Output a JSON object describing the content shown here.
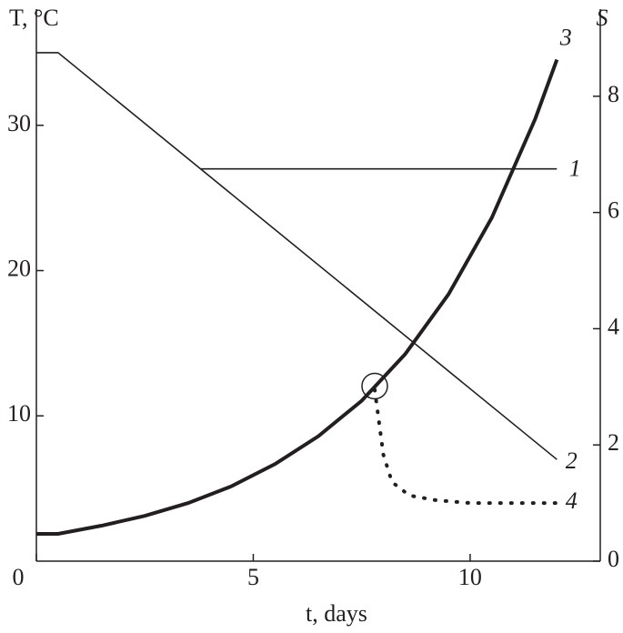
{
  "chart_data": {
    "type": "line",
    "ylabel": "T, °C",
    "y2label": "S",
    "xlabel": "t, days",
    "xlim": [
      0,
      13
    ],
    "xticks": [
      0,
      5,
      10
    ],
    "ylim": [
      0,
      38
    ],
    "yticks": [
      10,
      20,
      30
    ],
    "y2lim": [
      0,
      9.5
    ],
    "y2ticks": [
      0,
      2,
      4,
      6,
      8
    ],
    "series": [
      {
        "name": "1",
        "color": "#231f20",
        "style": "thin",
        "x": [
          3.8,
          12
        ],
        "values": [
          27,
          27
        ]
      },
      {
        "name": "2",
        "color": "#231f20",
        "style": "thin",
        "x": [
          0,
          0.5,
          12
        ],
        "values": [
          35,
          35,
          7
        ]
      },
      {
        "name": "3",
        "color": "#231f20",
        "style": "thick",
        "axis": "y2",
        "x": [
          0,
          0.5,
          1.5,
          2.5,
          3.5,
          4.5,
          5.5,
          6.5,
          7.5,
          8.5,
          9.5,
          10.5,
          11.5,
          12
        ],
        "values": [
          0.47,
          0.47,
          0.61,
          0.78,
          1.0,
          1.29,
          1.67,
          2.15,
          2.76,
          3.56,
          4.59,
          5.91,
          7.61,
          8.63
        ]
      },
      {
        "name": "4",
        "color": "#231f20",
        "style": "dotted",
        "axis": "y2",
        "x": [
          7.8,
          8.0,
          8.2,
          8.6,
          9.2,
          10,
          12
        ],
        "values": [
          2.95,
          1.83,
          1.36,
          1.13,
          1.05,
          1.0,
          1.0
        ]
      }
    ]
  }
}
